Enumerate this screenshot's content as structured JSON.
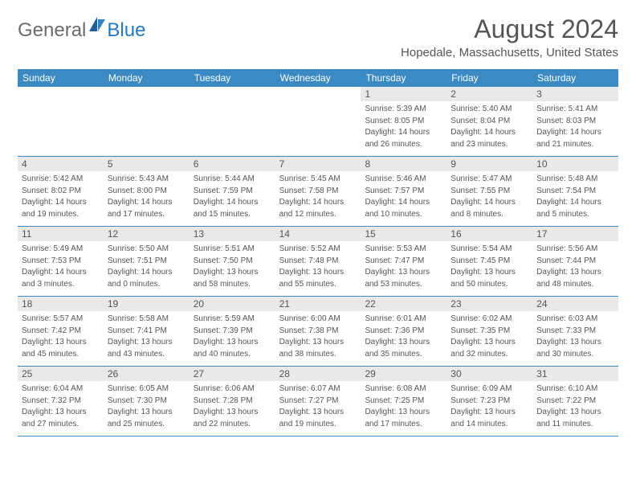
{
  "logo": {
    "word1": "General",
    "word2": "Blue"
  },
  "title": "August 2024",
  "location": "Hopedale, Massachusetts, United States",
  "colors": {
    "header_bg": "#3b8ac4",
    "header_text": "#ffffff",
    "daynum_bg": "#e9e9e9",
    "text": "#555555",
    "rule": "#3b8ac4",
    "logo_gray": "#6b6b6b",
    "logo_blue": "#2678bf"
  },
  "day_names": [
    "Sunday",
    "Monday",
    "Tuesday",
    "Wednesday",
    "Thursday",
    "Friday",
    "Saturday"
  ],
  "weeks": [
    [
      {
        "n": "",
        "sr": "",
        "ss": "",
        "dl1": "",
        "dl2": ""
      },
      {
        "n": "",
        "sr": "",
        "ss": "",
        "dl1": "",
        "dl2": ""
      },
      {
        "n": "",
        "sr": "",
        "ss": "",
        "dl1": "",
        "dl2": ""
      },
      {
        "n": "",
        "sr": "",
        "ss": "",
        "dl1": "",
        "dl2": ""
      },
      {
        "n": "1",
        "sr": "Sunrise: 5:39 AM",
        "ss": "Sunset: 8:05 PM",
        "dl1": "Daylight: 14 hours",
        "dl2": "and 26 minutes."
      },
      {
        "n": "2",
        "sr": "Sunrise: 5:40 AM",
        "ss": "Sunset: 8:04 PM",
        "dl1": "Daylight: 14 hours",
        "dl2": "and 23 minutes."
      },
      {
        "n": "3",
        "sr": "Sunrise: 5:41 AM",
        "ss": "Sunset: 8:03 PM",
        "dl1": "Daylight: 14 hours",
        "dl2": "and 21 minutes."
      }
    ],
    [
      {
        "n": "4",
        "sr": "Sunrise: 5:42 AM",
        "ss": "Sunset: 8:02 PM",
        "dl1": "Daylight: 14 hours",
        "dl2": "and 19 minutes."
      },
      {
        "n": "5",
        "sr": "Sunrise: 5:43 AM",
        "ss": "Sunset: 8:00 PM",
        "dl1": "Daylight: 14 hours",
        "dl2": "and 17 minutes."
      },
      {
        "n": "6",
        "sr": "Sunrise: 5:44 AM",
        "ss": "Sunset: 7:59 PM",
        "dl1": "Daylight: 14 hours",
        "dl2": "and 15 minutes."
      },
      {
        "n": "7",
        "sr": "Sunrise: 5:45 AM",
        "ss": "Sunset: 7:58 PM",
        "dl1": "Daylight: 14 hours",
        "dl2": "and 12 minutes."
      },
      {
        "n": "8",
        "sr": "Sunrise: 5:46 AM",
        "ss": "Sunset: 7:57 PM",
        "dl1": "Daylight: 14 hours",
        "dl2": "and 10 minutes."
      },
      {
        "n": "9",
        "sr": "Sunrise: 5:47 AM",
        "ss": "Sunset: 7:55 PM",
        "dl1": "Daylight: 14 hours",
        "dl2": "and 8 minutes."
      },
      {
        "n": "10",
        "sr": "Sunrise: 5:48 AM",
        "ss": "Sunset: 7:54 PM",
        "dl1": "Daylight: 14 hours",
        "dl2": "and 5 minutes."
      }
    ],
    [
      {
        "n": "11",
        "sr": "Sunrise: 5:49 AM",
        "ss": "Sunset: 7:53 PM",
        "dl1": "Daylight: 14 hours",
        "dl2": "and 3 minutes."
      },
      {
        "n": "12",
        "sr": "Sunrise: 5:50 AM",
        "ss": "Sunset: 7:51 PM",
        "dl1": "Daylight: 14 hours",
        "dl2": "and 0 minutes."
      },
      {
        "n": "13",
        "sr": "Sunrise: 5:51 AM",
        "ss": "Sunset: 7:50 PM",
        "dl1": "Daylight: 13 hours",
        "dl2": "and 58 minutes."
      },
      {
        "n": "14",
        "sr": "Sunrise: 5:52 AM",
        "ss": "Sunset: 7:48 PM",
        "dl1": "Daylight: 13 hours",
        "dl2": "and 55 minutes."
      },
      {
        "n": "15",
        "sr": "Sunrise: 5:53 AM",
        "ss": "Sunset: 7:47 PM",
        "dl1": "Daylight: 13 hours",
        "dl2": "and 53 minutes."
      },
      {
        "n": "16",
        "sr": "Sunrise: 5:54 AM",
        "ss": "Sunset: 7:45 PM",
        "dl1": "Daylight: 13 hours",
        "dl2": "and 50 minutes."
      },
      {
        "n": "17",
        "sr": "Sunrise: 5:56 AM",
        "ss": "Sunset: 7:44 PM",
        "dl1": "Daylight: 13 hours",
        "dl2": "and 48 minutes."
      }
    ],
    [
      {
        "n": "18",
        "sr": "Sunrise: 5:57 AM",
        "ss": "Sunset: 7:42 PM",
        "dl1": "Daylight: 13 hours",
        "dl2": "and 45 minutes."
      },
      {
        "n": "19",
        "sr": "Sunrise: 5:58 AM",
        "ss": "Sunset: 7:41 PM",
        "dl1": "Daylight: 13 hours",
        "dl2": "and 43 minutes."
      },
      {
        "n": "20",
        "sr": "Sunrise: 5:59 AM",
        "ss": "Sunset: 7:39 PM",
        "dl1": "Daylight: 13 hours",
        "dl2": "and 40 minutes."
      },
      {
        "n": "21",
        "sr": "Sunrise: 6:00 AM",
        "ss": "Sunset: 7:38 PM",
        "dl1": "Daylight: 13 hours",
        "dl2": "and 38 minutes."
      },
      {
        "n": "22",
        "sr": "Sunrise: 6:01 AM",
        "ss": "Sunset: 7:36 PM",
        "dl1": "Daylight: 13 hours",
        "dl2": "and 35 minutes."
      },
      {
        "n": "23",
        "sr": "Sunrise: 6:02 AM",
        "ss": "Sunset: 7:35 PM",
        "dl1": "Daylight: 13 hours",
        "dl2": "and 32 minutes."
      },
      {
        "n": "24",
        "sr": "Sunrise: 6:03 AM",
        "ss": "Sunset: 7:33 PM",
        "dl1": "Daylight: 13 hours",
        "dl2": "and 30 minutes."
      }
    ],
    [
      {
        "n": "25",
        "sr": "Sunrise: 6:04 AM",
        "ss": "Sunset: 7:32 PM",
        "dl1": "Daylight: 13 hours",
        "dl2": "and 27 minutes."
      },
      {
        "n": "26",
        "sr": "Sunrise: 6:05 AM",
        "ss": "Sunset: 7:30 PM",
        "dl1": "Daylight: 13 hours",
        "dl2": "and 25 minutes."
      },
      {
        "n": "27",
        "sr": "Sunrise: 6:06 AM",
        "ss": "Sunset: 7:28 PM",
        "dl1": "Daylight: 13 hours",
        "dl2": "and 22 minutes."
      },
      {
        "n": "28",
        "sr": "Sunrise: 6:07 AM",
        "ss": "Sunset: 7:27 PM",
        "dl1": "Daylight: 13 hours",
        "dl2": "and 19 minutes."
      },
      {
        "n": "29",
        "sr": "Sunrise: 6:08 AM",
        "ss": "Sunset: 7:25 PM",
        "dl1": "Daylight: 13 hours",
        "dl2": "and 17 minutes."
      },
      {
        "n": "30",
        "sr": "Sunrise: 6:09 AM",
        "ss": "Sunset: 7:23 PM",
        "dl1": "Daylight: 13 hours",
        "dl2": "and 14 minutes."
      },
      {
        "n": "31",
        "sr": "Sunrise: 6:10 AM",
        "ss": "Sunset: 7:22 PM",
        "dl1": "Daylight: 13 hours",
        "dl2": "and 11 minutes."
      }
    ]
  ]
}
